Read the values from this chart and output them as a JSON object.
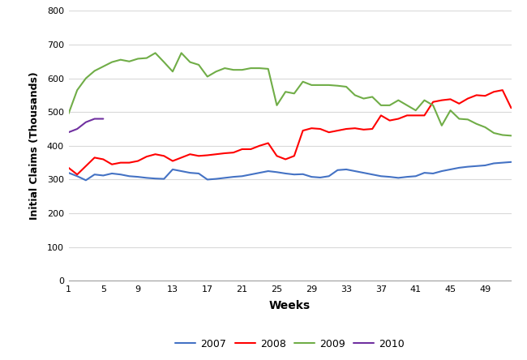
{
  "title": "",
  "xlabel": "Weeks",
  "ylabel": "Initial Claims (Thousands)",
  "xlim": [
    1,
    52
  ],
  "ylim": [
    0,
    800
  ],
  "yticks": [
    0,
    100,
    200,
    300,
    400,
    500,
    600,
    700,
    800
  ],
  "xticks": [
    1,
    5,
    9,
    13,
    17,
    21,
    25,
    29,
    33,
    37,
    41,
    45,
    49
  ],
  "series": {
    "2007": {
      "color": "#4472C4",
      "values": [
        320,
        310,
        298,
        315,
        312,
        318,
        315,
        310,
        308,
        305,
        303,
        302,
        330,
        325,
        320,
        318,
        300,
        302,
        305,
        308,
        310,
        315,
        320,
        325,
        322,
        318,
        315,
        316,
        308,
        306,
        310,
        328,
        330,
        325,
        320,
        315,
        310,
        308,
        305,
        308,
        310,
        320,
        318,
        325,
        330,
        335,
        338,
        340,
        342,
        348,
        350,
        352
      ]
    },
    "2008": {
      "color": "#FF0000",
      "values": [
        335,
        315,
        340,
        365,
        360,
        345,
        350,
        350,
        355,
        368,
        375,
        370,
        355,
        365,
        375,
        370,
        372,
        375,
        378,
        380,
        390,
        390,
        400,
        408,
        370,
        360,
        370,
        445,
        452,
        450,
        440,
        445,
        450,
        452,
        448,
        450,
        490,
        475,
        480,
        490,
        490,
        490,
        530,
        535,
        538,
        525,
        540,
        550,
        548,
        560,
        565,
        512
      ]
    },
    "2009": {
      "color": "#70AD47",
      "values": [
        495,
        565,
        600,
        622,
        635,
        648,
        655,
        650,
        658,
        660,
        675,
        648,
        620,
        675,
        648,
        640,
        605,
        620,
        630,
        625,
        625,
        630,
        630,
        628,
        520,
        560,
        555,
        590,
        580,
        580,
        580,
        578,
        575,
        550,
        540,
        545,
        520,
        520,
        535,
        520,
        505,
        535,
        520,
        460,
        505,
        480,
        478,
        465,
        455,
        438,
        432,
        430
      ]
    },
    "2010": {
      "color": "#7030A0",
      "values": [
        440,
        450,
        470,
        480,
        480,
        null,
        null,
        null,
        null,
        null,
        null,
        null,
        null,
        null,
        null,
        null,
        null,
        null,
        null,
        null,
        null,
        null,
        null,
        null,
        null,
        null,
        null,
        null,
        null,
        null,
        null,
        null,
        null,
        null,
        null,
        null,
        null,
        null,
        null,
        null,
        null,
        null,
        null,
        null,
        null,
        null,
        null,
        null,
        null,
        null,
        null,
        null
      ]
    }
  },
  "legend_labels": [
    "2007",
    "2008",
    "2009",
    "2010"
  ],
  "background_color": "#FFFFFF",
  "grid_color": "#D9D9D9",
  "line_width": 1.5,
  "tick_fontsize": 8,
  "label_fontsize": 10
}
